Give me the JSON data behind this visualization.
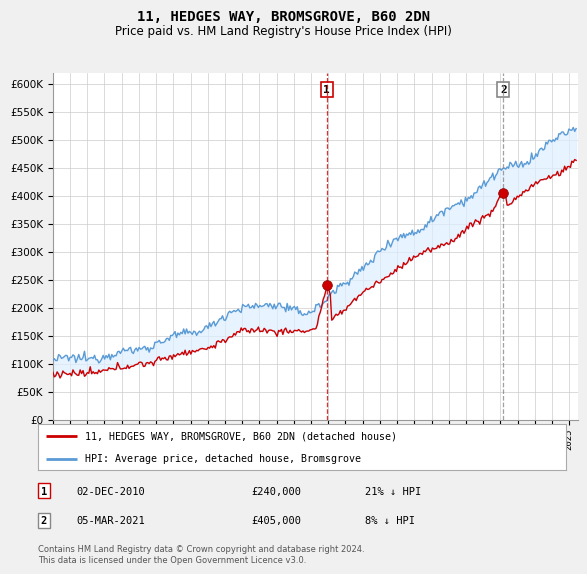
{
  "title": "11, HEDGES WAY, BROMSGROVE, B60 2DN",
  "subtitle": "Price paid vs. HM Land Registry's House Price Index (HPI)",
  "ylim": [
    0,
    600000
  ],
  "hpi_color": "#5b9bd5",
  "hpi_fill_color": "#ddeeff",
  "price_color": "#cc0000",
  "vline1_color": "#cc0000",
  "vline2_color": "#888888",
  "marker_face_color": "#cc0000",
  "legend_line1": "11, HEDGES WAY, BROMSGROVE, B60 2DN (detached house)",
  "legend_line2": "HPI: Average price, detached house, Bromsgrove",
  "footer": "Contains HM Land Registry data © Crown copyright and database right 2024.\nThis data is licensed under the Open Government Licence v3.0.",
  "background_color": "#f0f0f0",
  "plot_bg_color": "#ffffff",
  "t1_year": 2010.917,
  "t1_val": 240000,
  "t2_year": 2021.167,
  "t2_val": 405000
}
